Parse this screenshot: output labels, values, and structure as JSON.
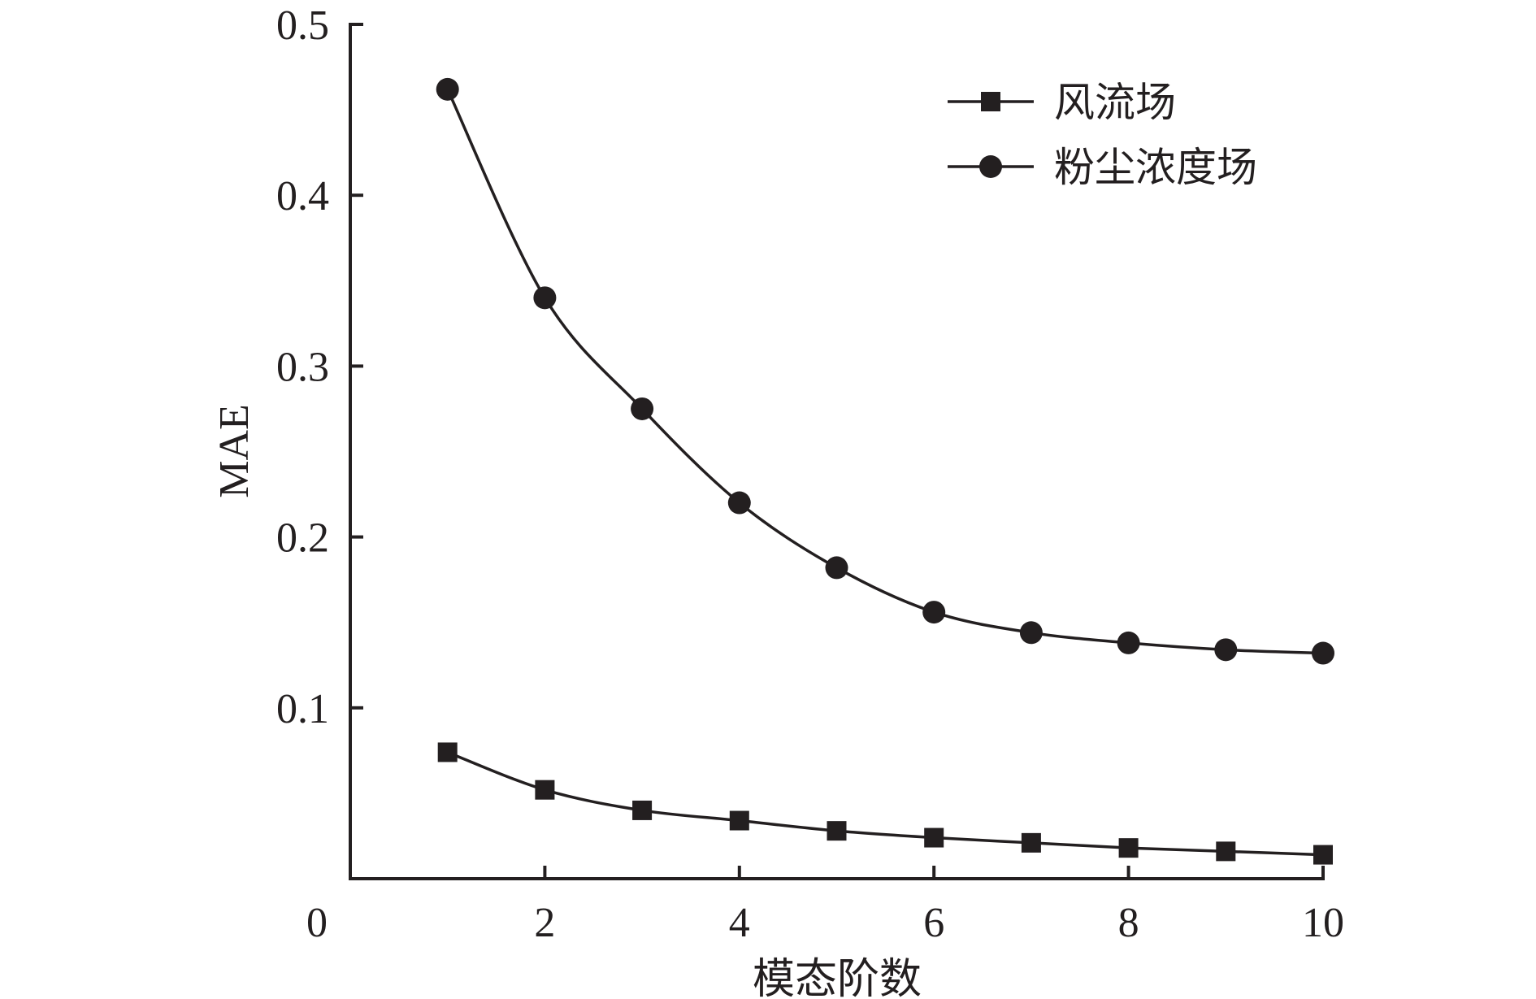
{
  "chart_data": {
    "type": "line",
    "title": "",
    "xlabel": "模态阶数",
    "ylabel": "MAE",
    "xlim": [
      0,
      10
    ],
    "ylim": [
      0,
      0.5
    ],
    "x_ticks": [
      2,
      4,
      6,
      8,
      10
    ],
    "x_tick_labels": [
      "2",
      "4",
      "6",
      "8",
      "10"
    ],
    "y_ticks": [
      0.1,
      0.2,
      0.3,
      0.4,
      0.5
    ],
    "y_tick_labels": [
      "0.1",
      "0.2",
      "0.3",
      "0.4",
      "0.5"
    ],
    "origin_label": "0",
    "grid": false,
    "legend_position": "top-right",
    "x": [
      1,
      2,
      3,
      4,
      5,
      6,
      7,
      8,
      9,
      10
    ],
    "series": [
      {
        "name": "风流场",
        "marker": "square",
        "color": "#231f20",
        "values": [
          0.074,
          0.052,
          0.04,
          0.034,
          0.028,
          0.024,
          0.021,
          0.018,
          0.016,
          0.014
        ]
      },
      {
        "name": "粉尘浓度场",
        "marker": "circle",
        "color": "#231f20",
        "values": [
          0.462,
          0.34,
          0.275,
          0.22,
          0.182,
          0.156,
          0.144,
          0.138,
          0.134,
          0.132
        ]
      }
    ]
  }
}
